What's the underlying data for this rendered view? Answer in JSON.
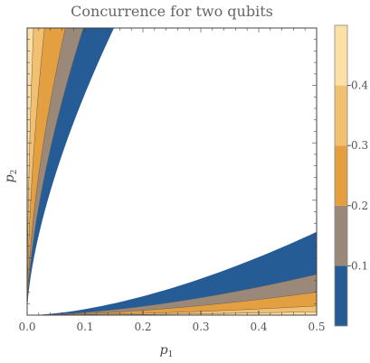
{
  "chart_data": {
    "type": "contour",
    "title": "Concurrence for two qubits",
    "xlabel": {
      "base": "p",
      "sub": "1"
    },
    "ylabel": {
      "base": "p",
      "sub": "2"
    },
    "xlim": [
      0,
      0.5
    ],
    "ylim": [
      0,
      0.5
    ],
    "x_ticks": [
      "0.0",
      "0.1",
      "0.2",
      "0.3",
      "0.4",
      "0.5"
    ],
    "y_ticks": [],
    "grid": false,
    "colorbar": {
      "placement": "right",
      "range": [
        0,
        0.5
      ],
      "ticks": [
        "0.1",
        "0.2",
        "0.3",
        "0.4"
      ],
      "levels": [
        {
          "from": 0.0,
          "to": 0.1,
          "color": "#265c96"
        },
        {
          "from": 0.1,
          "to": 0.2,
          "color": "#9a8878"
        },
        {
          "from": 0.2,
          "to": 0.3,
          "color": "#e4a040"
        },
        {
          "from": 0.3,
          "to": 0.4,
          "color": "#f1c070"
        },
        {
          "from": 0.4,
          "to": 0.5,
          "color": "#fce0a6"
        }
      ]
    },
    "regions": {
      "upper_left_band_outer_edge_x_at_top": [
        0.0,
        0.01,
        0.03,
        0.065,
        0.095,
        0.15
      ],
      "lower_right_band_outer_edge_y_at_right": [
        0.0,
        0.006,
        0.015,
        0.04,
        0.07,
        0.145
      ]
    }
  }
}
